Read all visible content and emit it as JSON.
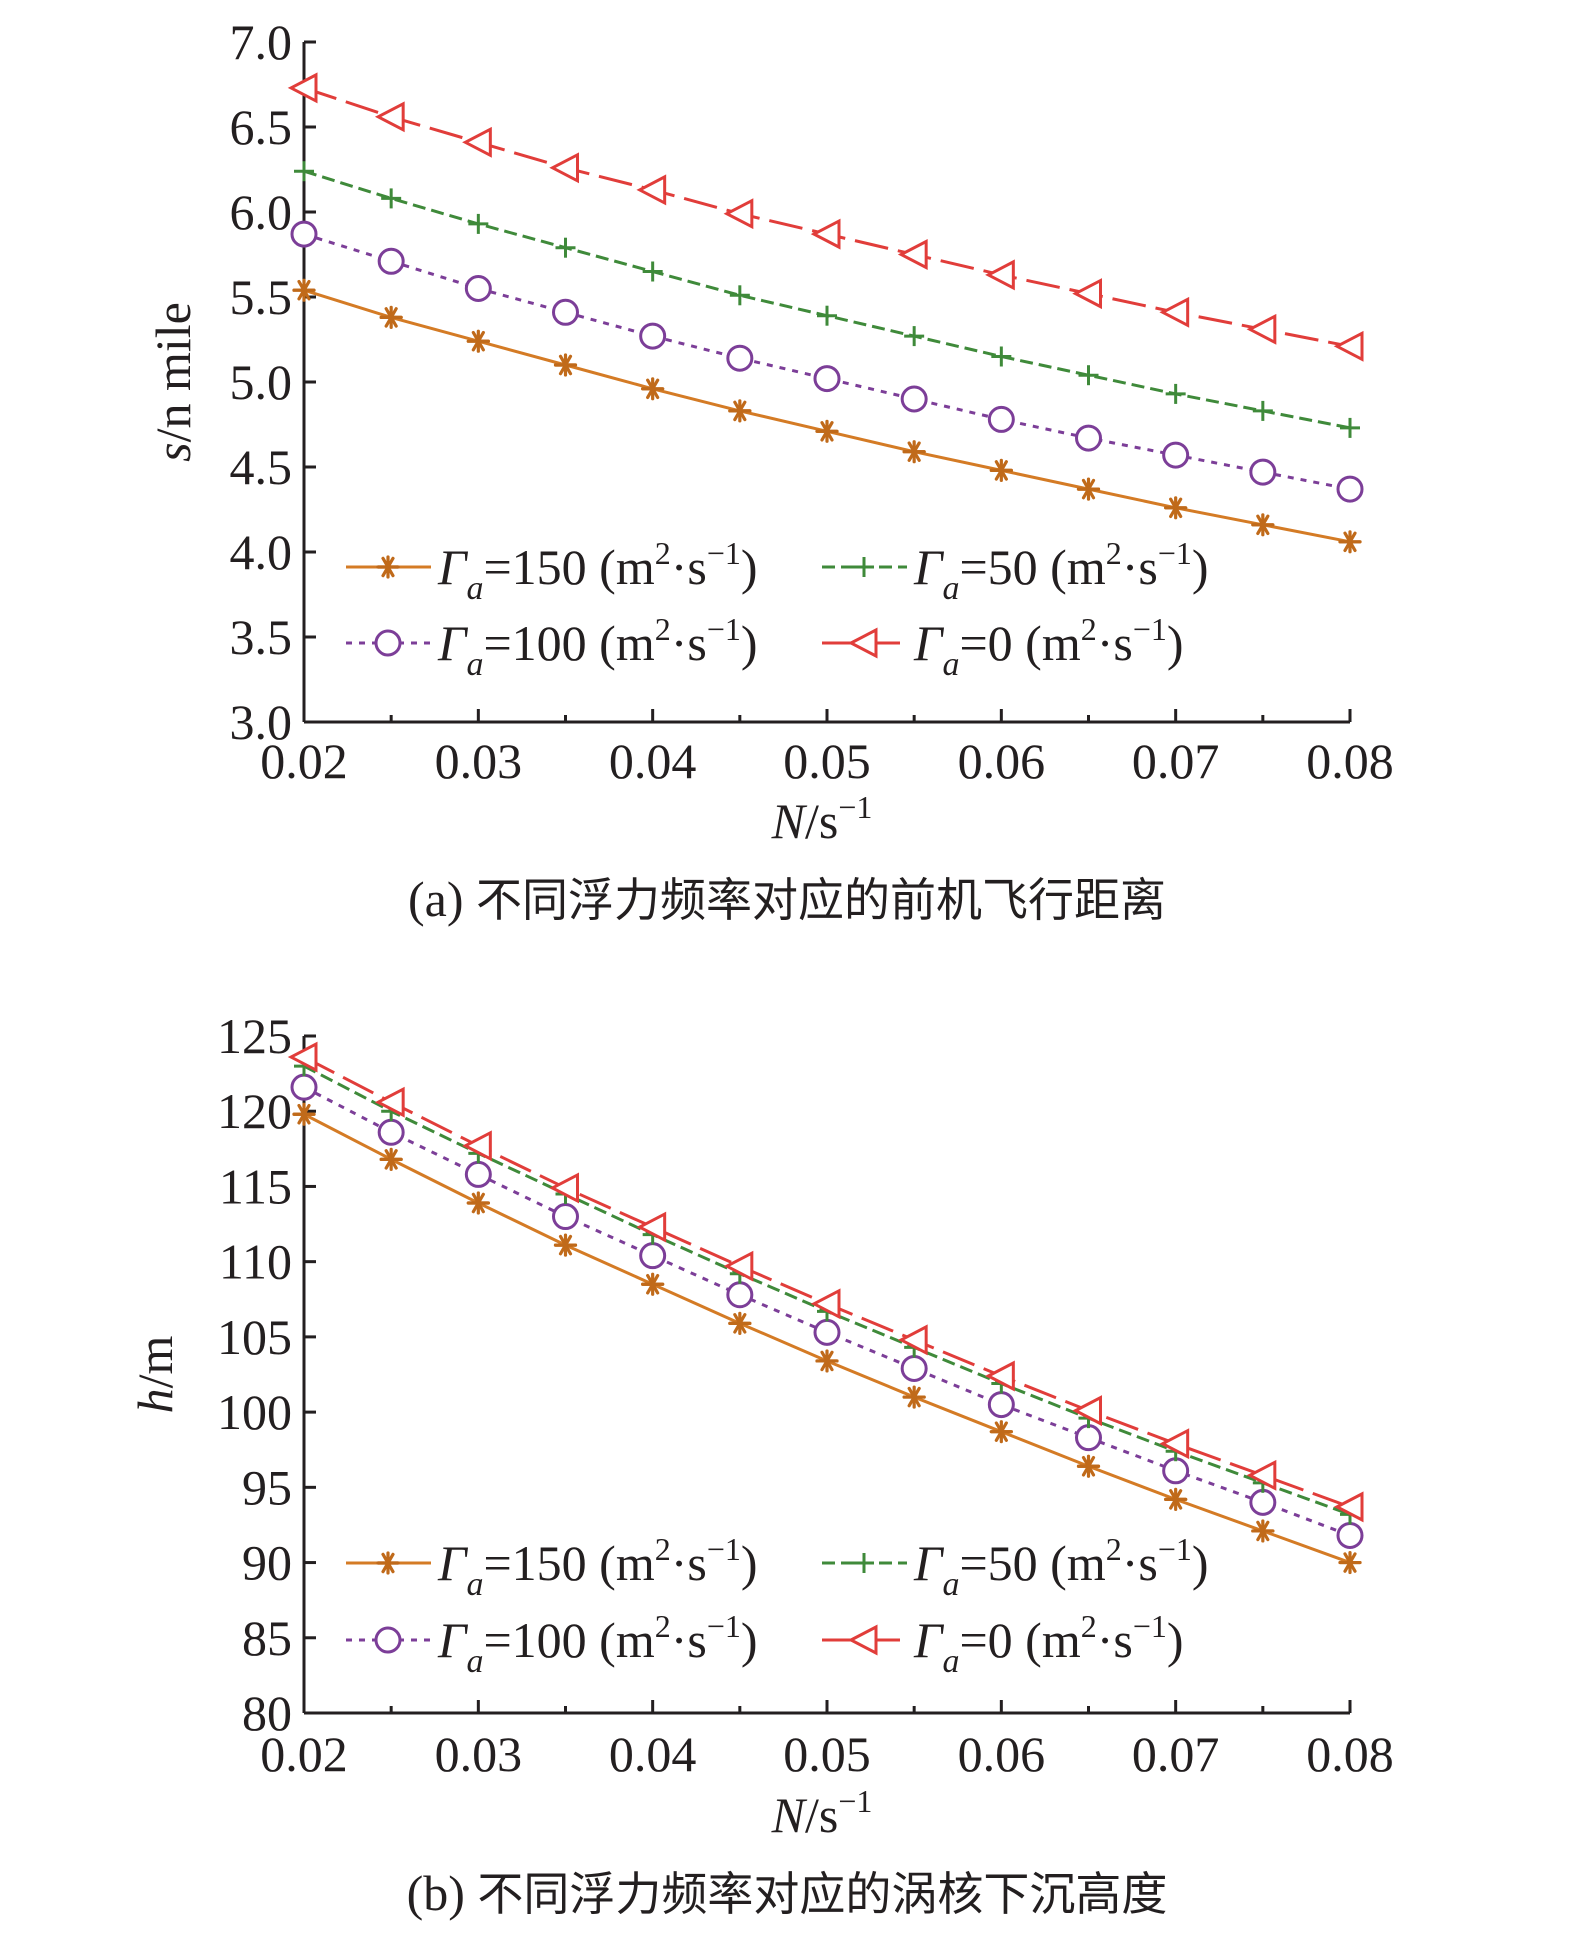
{
  "chart_data": [
    {
      "type": "line",
      "caption_prefix": "(a)",
      "caption_text": "不同浮力频率对应的前机飞行距离",
      "xlabel_var": "N",
      "xlabel_unit": "s",
      "xlabel_unit_exp": "−1",
      "ylabel_var": "s",
      "ylabel_unit": "n mile",
      "xlim": [
        0.02,
        0.08
      ],
      "ylim": [
        3.0,
        7.0
      ],
      "xticks": [
        "0.02",
        "0.03",
        "0.04",
        "0.05",
        "0.06",
        "0.07",
        "0.08"
      ],
      "yticks": [
        "3.0",
        "3.5",
        "4.0",
        "4.5",
        "5.0",
        "5.5",
        "6.0",
        "6.5",
        "7.0"
      ],
      "x": [
        0.02,
        0.025,
        0.03,
        0.035,
        0.04,
        0.045,
        0.05,
        0.055,
        0.06,
        0.065,
        0.07,
        0.075,
        0.08
      ],
      "series": [
        {
          "name": "Γa=150 (m²·s⁻¹)",
          "sym": "Γ",
          "sub": "a",
          "val": "=150",
          "unit": "m",
          "unit_exp": "2",
          "unit2": "s",
          "unit2_exp": "−1",
          "color": "#d47b25",
          "marker_color": "#c06a1a",
          "marker": "asterisk",
          "dash": "",
          "values": [
            5.54,
            5.38,
            5.24,
            5.1,
            4.96,
            4.83,
            4.71,
            4.59,
            4.48,
            4.37,
            4.26,
            4.16,
            4.06
          ]
        },
        {
          "name": "Γa=100 (m²·s⁻¹)",
          "sym": "Γ",
          "sub": "a",
          "val": "=100",
          "unit": "m",
          "unit_exp": "2",
          "unit2": "s",
          "unit2_exp": "−1",
          "color": "#7c3e98",
          "marker_color": "#7c3e98",
          "marker": "circle",
          "dash": "6,7",
          "values": [
            5.87,
            5.71,
            5.55,
            5.41,
            5.27,
            5.14,
            5.02,
            4.9,
            4.78,
            4.67,
            4.57,
            4.47,
            4.37
          ]
        },
        {
          "name": "Γa=50 (m²·s⁻¹)",
          "sym": "Γ",
          "sub": "a",
          "val": "=50",
          "unit": "m",
          "unit_exp": "2",
          "unit2": "s",
          "unit2_exp": "−1",
          "color": "#3f8a3a",
          "marker_color": "#3f8a3a",
          "marker": "plus",
          "dash": "13,6",
          "values": [
            6.24,
            6.08,
            5.93,
            5.79,
            5.65,
            5.51,
            5.39,
            5.27,
            5.15,
            5.04,
            4.93,
            4.83,
            4.73
          ]
        },
        {
          "name": "Γa=0 (m²·s⁻¹)",
          "sym": "Γ",
          "sub": "a",
          "val": "=0",
          "unit": "m",
          "unit_exp": "2",
          "unit2": "s",
          "unit2_exp": "−1",
          "color": "#e13d3a",
          "marker_color": "#e13d3a",
          "marker": "triangle",
          "dash": "34,10",
          "values": [
            6.73,
            6.56,
            6.41,
            6.26,
            6.13,
            5.99,
            5.87,
            5.75,
            5.63,
            5.52,
            5.41,
            5.31,
            5.21
          ]
        }
      ],
      "legend": "lower-left, 2 columns"
    },
    {
      "type": "line",
      "caption_prefix": "(b)",
      "caption_text": "不同浮力频率对应的涡核下沉高度",
      "xlabel_var": "N",
      "xlabel_unit": "s",
      "xlabel_unit_exp": "−1",
      "ylabel_var": "h",
      "ylabel_unit": "m",
      "xlim": [
        0.02,
        0.08
      ],
      "ylim": [
        80,
        125
      ],
      "xticks": [
        "0.02",
        "0.03",
        "0.04",
        "0.05",
        "0.06",
        "0.07",
        "0.08"
      ],
      "yticks": [
        "80",
        "85",
        "90",
        "95",
        "100",
        "105",
        "110",
        "115",
        "120",
        "125"
      ],
      "x": [
        0.02,
        0.025,
        0.03,
        0.035,
        0.04,
        0.045,
        0.05,
        0.055,
        0.06,
        0.065,
        0.07,
        0.075,
        0.08
      ],
      "series": [
        {
          "name": "Γa=150 (m²·s⁻¹)",
          "sym": "Γ",
          "sub": "a",
          "val": "=150",
          "unit": "m",
          "unit_exp": "2",
          "unit2": "s",
          "unit2_exp": "−1",
          "color": "#d47b25",
          "marker_color": "#c06a1a",
          "marker": "asterisk",
          "dash": "",
          "values": [
            119.8,
            116.8,
            113.9,
            111.1,
            108.5,
            105.9,
            103.4,
            101.0,
            98.7,
            96.4,
            94.2,
            92.1,
            90.0
          ]
        },
        {
          "name": "Γa=100 (m²·s⁻¹)",
          "sym": "Γ",
          "sub": "a",
          "val": "=100",
          "unit": "m",
          "unit_exp": "2",
          "unit2": "s",
          "unit2_exp": "−1",
          "color": "#7c3e98",
          "marker_color": "#7c3e98",
          "marker": "circle",
          "dash": "6,7",
          "values": [
            121.6,
            118.6,
            115.8,
            113.0,
            110.4,
            107.8,
            105.3,
            102.9,
            100.5,
            98.3,
            96.1,
            94.0,
            91.8
          ]
        },
        {
          "name": "Γa=50 (m²·s⁻¹)",
          "sym": "Γ",
          "sub": "a",
          "val": "=50",
          "unit": "m",
          "unit_exp": "2",
          "unit2": "s",
          "unit2_exp": "−1",
          "color": "#3f8a3a",
          "marker_color": "#3f8a3a",
          "marker": "plus",
          "dash": "13,6",
          "values": [
            123.0,
            120.0,
            117.2,
            114.5,
            111.8,
            109.2,
            106.7,
            104.3,
            101.9,
            99.6,
            97.4,
            95.3,
            93.2
          ]
        },
        {
          "name": "Γa=0 (m²·s⁻¹)",
          "sym": "Γ",
          "sub": "a",
          "val": "=0",
          "unit": "m",
          "unit_exp": "2",
          "unit2": "s",
          "unit2_exp": "−1",
          "color": "#e13d3a",
          "marker_color": "#e13d3a",
          "marker": "triangle",
          "dash": "34,10",
          "values": [
            123.6,
            120.6,
            117.7,
            114.9,
            112.3,
            109.7,
            107.2,
            104.8,
            102.4,
            100.1,
            97.9,
            95.8,
            93.7
          ]
        }
      ],
      "legend": "lower-left, 2 columns"
    }
  ]
}
